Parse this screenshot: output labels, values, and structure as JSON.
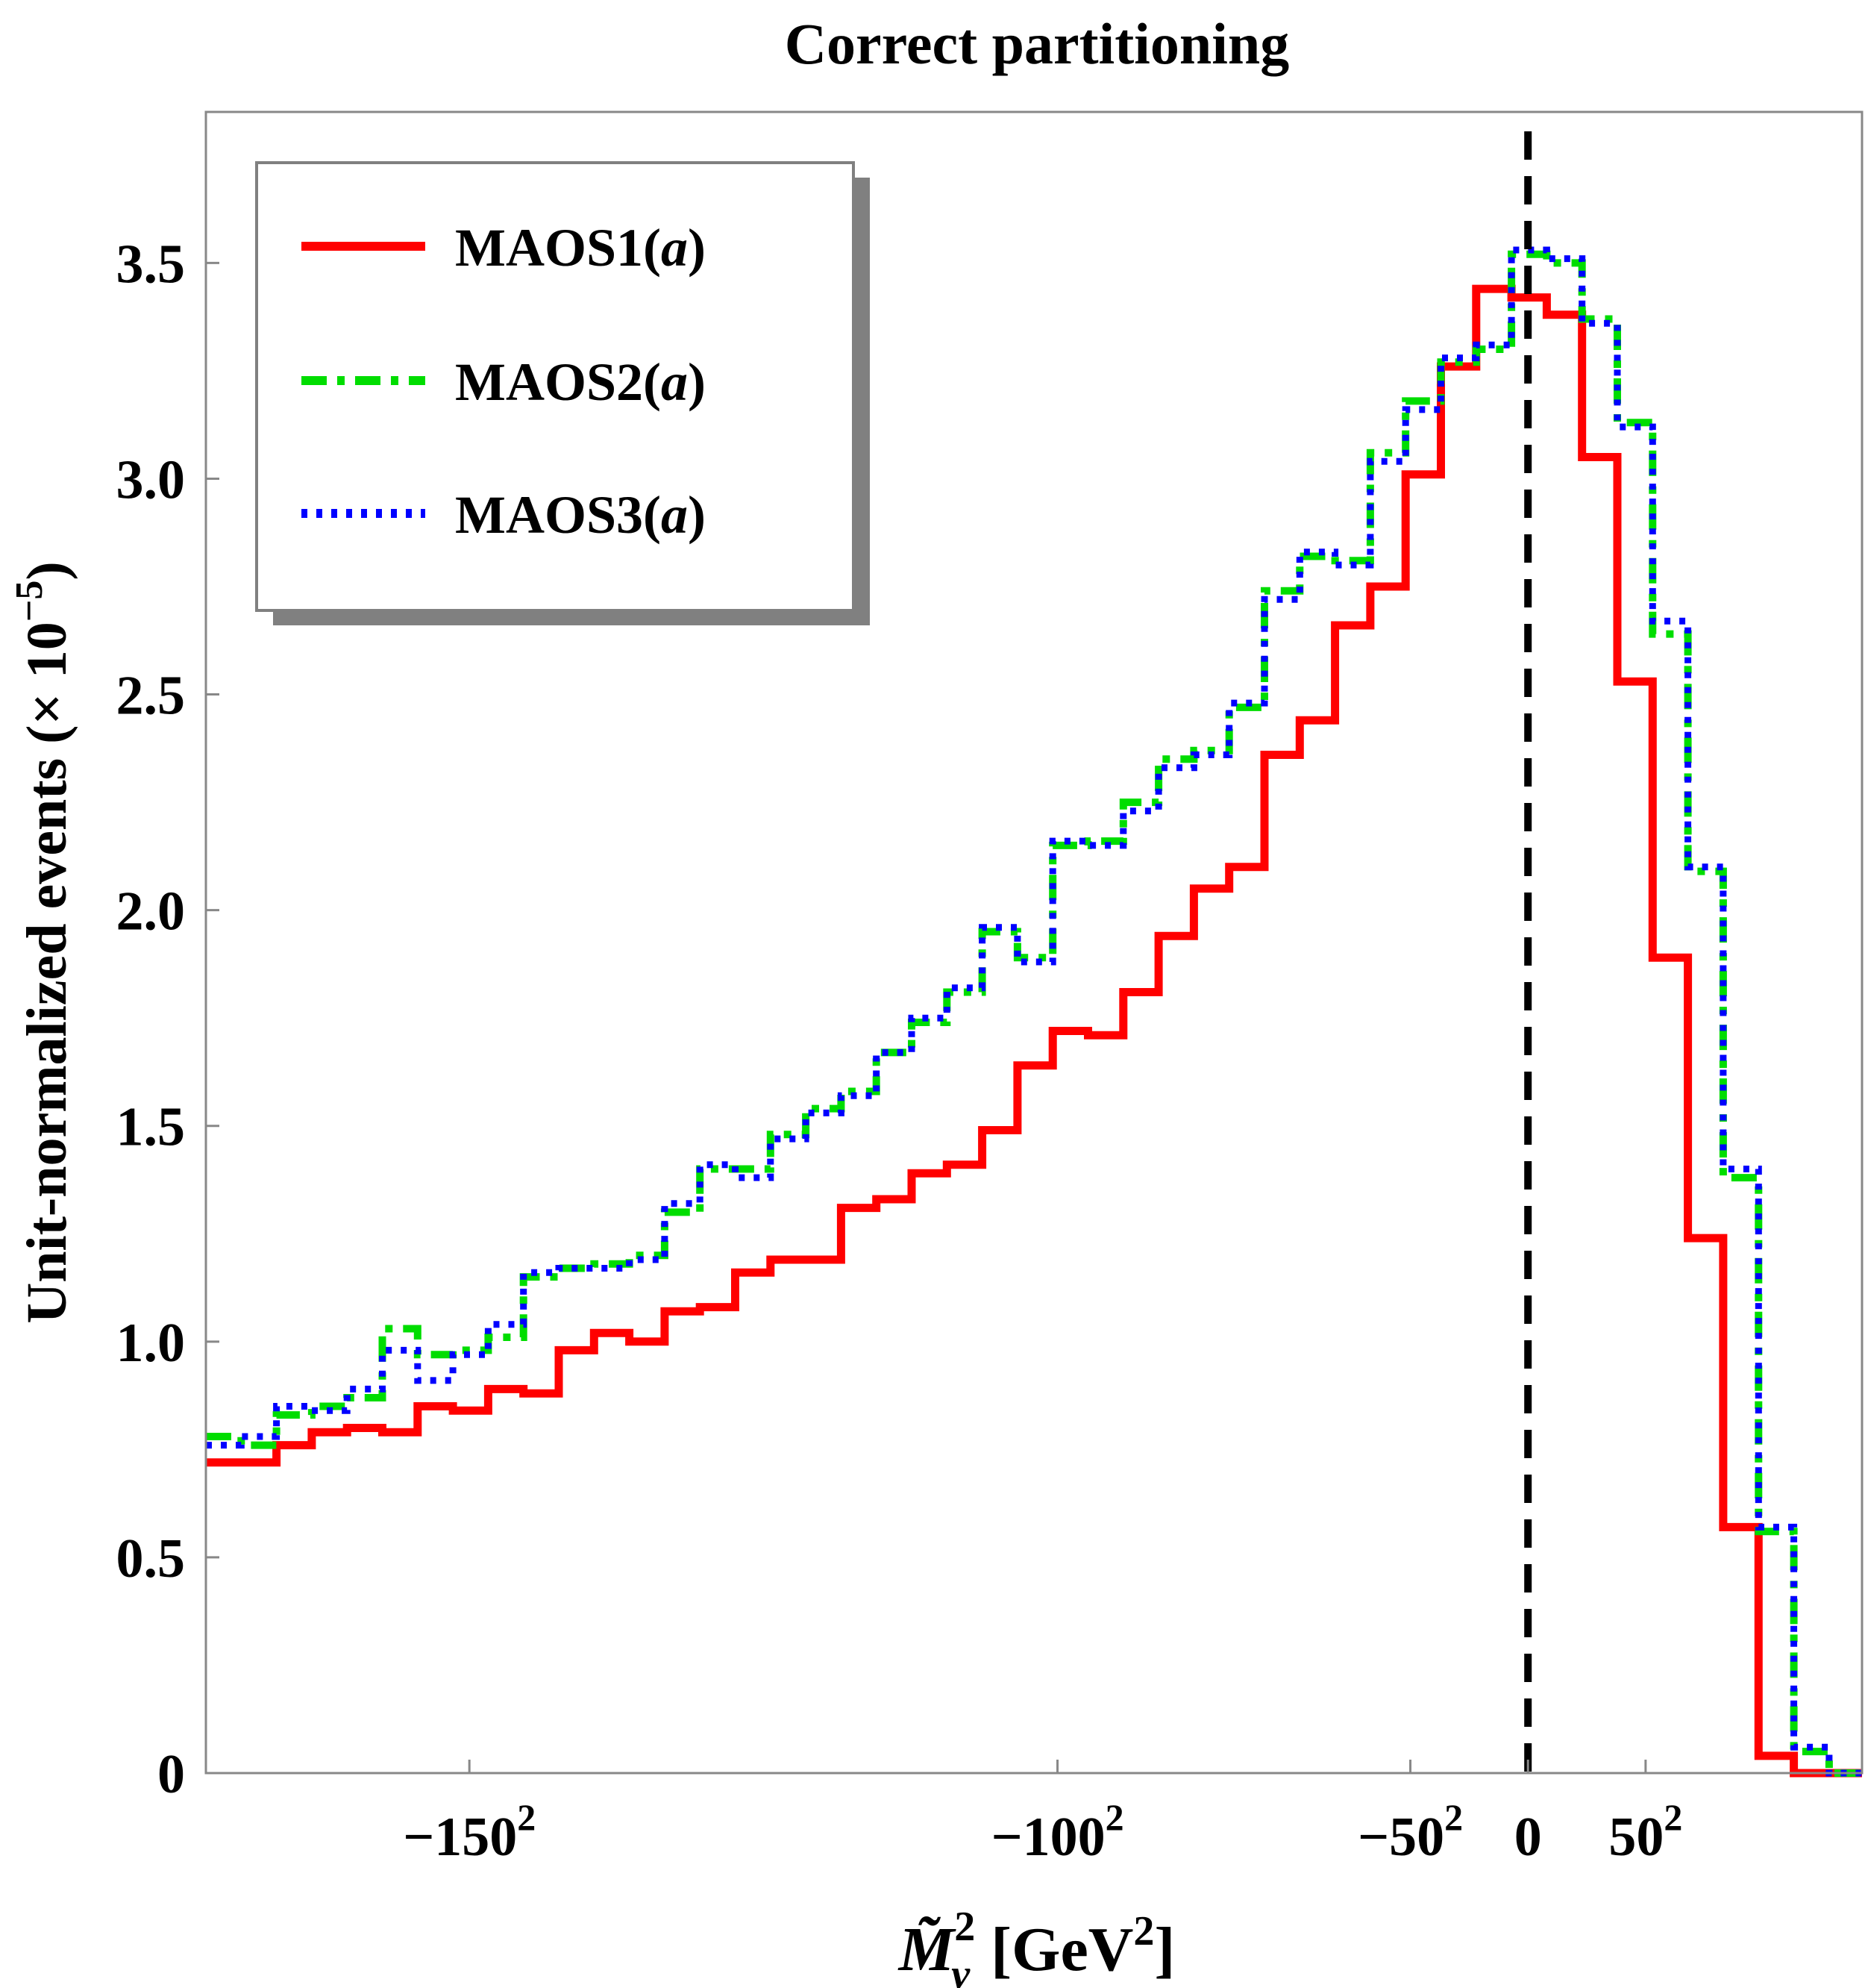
{
  "chart_data": {
    "type": "line",
    "subtype": "step-histogram",
    "title": "Correct partitioning",
    "xlabel": "M̃²ν [GeV²]",
    "xlabel_parts": {
      "symbol": "M̃",
      "sup": "2",
      "sub": "ν",
      "unit_open": "[GeV",
      "unit_sup": "2",
      "unit_close": "]"
    },
    "ylabel": "Unit-normalized events (× 10⁻⁵)",
    "ylabel_parts": {
      "main": "Unit-normalized events (× 10",
      "sup": "−5",
      "close": ")"
    },
    "xlim": [
      -28100,
      7100
    ],
    "ylim": [
      0,
      3.85
    ],
    "bin_start": -28100,
    "bin_width": 750,
    "x_ticks": [
      {
        "value": -22500,
        "base": "−150",
        "sup": "2"
      },
      {
        "value": -10000,
        "base": "−100",
        "sup": "2"
      },
      {
        "value": -2500,
        "base": "−50",
        "sup": "2"
      },
      {
        "value": 0,
        "base": "0",
        "sup": ""
      },
      {
        "value": 2500,
        "base": "50",
        "sup": "2"
      }
    ],
    "y_ticks": [
      {
        "value": 0,
        "label": "0"
      },
      {
        "value": 0.5,
        "label": "0.5"
      },
      {
        "value": 1.0,
        "label": "1.0"
      },
      {
        "value": 1.5,
        "label": "1.5"
      },
      {
        "value": 2.0,
        "label": "2.0"
      },
      {
        "value": 2.5,
        "label": "2.5"
      },
      {
        "value": 3.0,
        "label": "3.0"
      },
      {
        "value": 3.5,
        "label": "3.5"
      }
    ],
    "vertical_line": {
      "x": 0,
      "color": "#000000",
      "style": "dashed"
    },
    "legend": {
      "position": "top-left"
    },
    "series": [
      {
        "name": "MAOS1(a)",
        "name_parts": {
          "prefix": "MAOS1(",
          "italic": "a",
          "suffix": ")"
        },
        "color": "#ff0000",
        "style": "solid",
        "values": [
          0.72,
          0.72,
          0.76,
          0.79,
          0.8,
          0.79,
          0.85,
          0.84,
          0.89,
          0.88,
          0.98,
          1.02,
          1.0,
          1.07,
          1.08,
          1.16,
          1.19,
          1.19,
          1.31,
          1.33,
          1.39,
          1.41,
          1.49,
          1.64,
          1.72,
          1.71,
          1.81,
          1.94,
          2.05,
          2.1,
          2.36,
          2.44,
          2.66,
          2.75,
          3.01,
          3.26,
          3.44,
          3.42,
          3.38,
          3.05,
          2.53,
          1.89,
          1.24,
          0.57,
          0.04,
          0.0,
          0.0
        ]
      },
      {
        "name": "MAOS2(a)",
        "name_parts": {
          "prefix": "MAOS2(",
          "italic": "a",
          "suffix": ")"
        },
        "color": "#00dd00",
        "style": "dashdot",
        "values": [
          0.78,
          0.76,
          0.83,
          0.85,
          0.87,
          1.03,
          0.97,
          0.98,
          1.01,
          1.15,
          1.17,
          1.18,
          1.2,
          1.3,
          1.4,
          1.4,
          1.48,
          1.54,
          1.58,
          1.67,
          1.74,
          1.81,
          1.95,
          1.89,
          2.15,
          2.16,
          2.25,
          2.35,
          2.37,
          2.47,
          2.74,
          2.82,
          2.81,
          3.06,
          3.18,
          3.27,
          3.3,
          3.52,
          3.5,
          3.37,
          3.13,
          2.64,
          2.09,
          1.38,
          0.56,
          0.05,
          0.0,
          0.0
        ]
      },
      {
        "name": "MAOS3(a)",
        "name_parts": {
          "prefix": "MAOS3(",
          "italic": "a",
          "suffix": ")"
        },
        "color": "#0000ff",
        "style": "dotted",
        "values": [
          0.76,
          0.78,
          0.85,
          0.84,
          0.89,
          0.98,
          0.91,
          0.97,
          1.04,
          1.16,
          1.17,
          1.17,
          1.19,
          1.32,
          1.41,
          1.38,
          1.47,
          1.53,
          1.57,
          1.67,
          1.75,
          1.82,
          1.96,
          1.88,
          2.16,
          2.15,
          2.23,
          2.33,
          2.36,
          2.48,
          2.72,
          2.83,
          2.8,
          3.04,
          3.16,
          3.28,
          3.31,
          3.53,
          3.51,
          3.36,
          3.12,
          2.67,
          2.1,
          1.4,
          0.57,
          0.06,
          0.0,
          0.0
        ]
      }
    ]
  }
}
